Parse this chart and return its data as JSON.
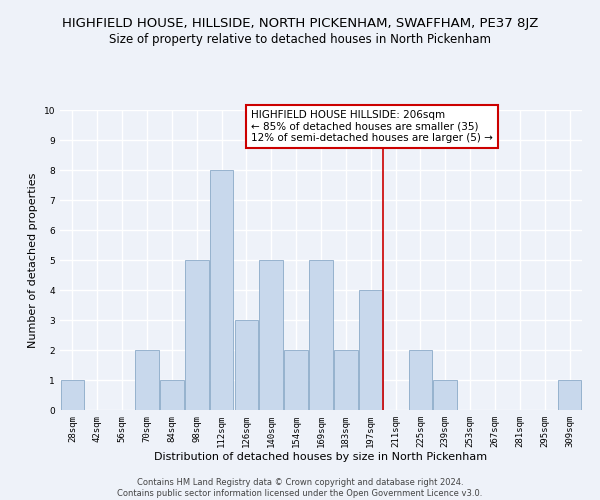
{
  "title": "HIGHFIELD HOUSE, HILLSIDE, NORTH PICKENHAM, SWAFFHAM, PE37 8JZ",
  "subtitle": "Size of property relative to detached houses in North Pickenham",
  "xlabel": "Distribution of detached houses by size in North Pickenham",
  "ylabel": "Number of detached properties",
  "categories": [
    "28sqm",
    "42sqm",
    "56sqm",
    "70sqm",
    "84sqm",
    "98sqm",
    "112sqm",
    "126sqm",
    "140sqm",
    "154sqm",
    "169sqm",
    "183sqm",
    "197sqm",
    "211sqm",
    "225sqm",
    "239sqm",
    "253sqm",
    "267sqm",
    "281sqm",
    "295sqm",
    "309sqm"
  ],
  "values": [
    1,
    0,
    0,
    2,
    1,
    5,
    8,
    3,
    5,
    2,
    5,
    2,
    4,
    0,
    2,
    1,
    0,
    0,
    0,
    0,
    1
  ],
  "bar_color": "#c8d8ec",
  "bar_edgecolor": "#8baac8",
  "reference_line_color": "#cc0000",
  "reference_line_index": 12.5,
  "annotation_box_text": "HIGHFIELD HOUSE HILLSIDE: 206sqm\n← 85% of detached houses are smaller (35)\n12% of semi-detached houses are larger (5) →",
  "annotation_box_color": "#cc0000",
  "ylim": [
    0,
    10
  ],
  "yticks": [
    0,
    1,
    2,
    3,
    4,
    5,
    6,
    7,
    8,
    9,
    10
  ],
  "footer_text": "Contains HM Land Registry data © Crown copyright and database right 2024.\nContains public sector information licensed under the Open Government Licence v3.0.",
  "background_color": "#eef2f9",
  "grid_color": "#ffffff",
  "title_fontsize": 9.5,
  "subtitle_fontsize": 8.5,
  "axis_label_fontsize": 8,
  "tick_fontsize": 6.5,
  "footer_fontsize": 6,
  "ann_fontsize": 7.5
}
